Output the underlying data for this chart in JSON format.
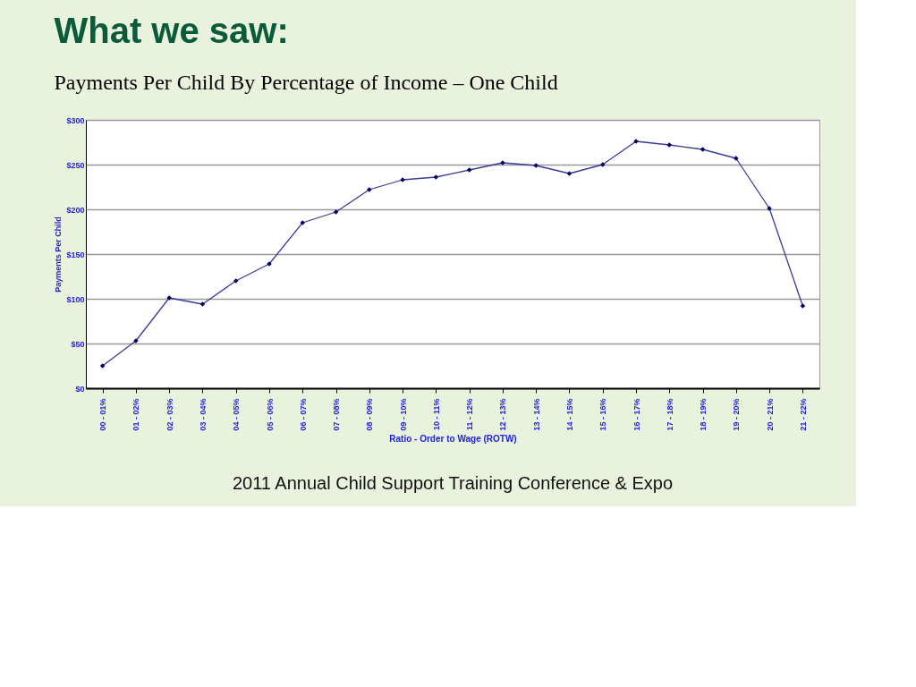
{
  "chart_data": {
    "type": "line",
    "title": "What we saw:",
    "subtitle": "Payments Per Child By Percentage of Income – One Child",
    "xlabel": "Ratio - Order to Wage (ROTW)",
    "ylabel": "Payments Per Child",
    "categories": [
      "00 - 01%",
      "01 - 02%",
      "02 - 03%",
      "03 - 04%",
      "04 - 05%",
      "05 - 06%",
      "06 - 07%",
      "07 - 08%",
      "08 - 09%",
      "09 - 10%",
      "10 - 11%",
      "11 - 12%",
      "12 - 13%",
      "13 - 14%",
      "14 - 15%",
      "15 - 16%",
      "16 - 17%",
      "17 - 18%",
      "18 - 19%",
      "19 - 20%",
      "20 - 21%",
      "21 - 22%"
    ],
    "series": [
      {
        "color": "#3a3a9a",
        "values": [
          25,
          53,
          101,
          94,
          120,
          139,
          185,
          197,
          222,
          233,
          236,
          244,
          252,
          249,
          240,
          250,
          276,
          272,
          267,
          257,
          201,
          92
        ]
      }
    ],
    "ylim": [
      0,
      300
    ],
    "yticks": [
      {
        "value": 0,
        "label": "$0"
      },
      {
        "value": 50,
        "label": "$50"
      },
      {
        "value": 100,
        "label": "$100"
      },
      {
        "value": 150,
        "label": "$150"
      },
      {
        "value": 200,
        "label": "$200"
      },
      {
        "value": 250,
        "label": "$250"
      },
      {
        "value": 300,
        "label": "$300"
      }
    ],
    "grid": "y",
    "marker": "diamond",
    "line_style": "solid",
    "legend": false,
    "annotations": [
      "2011 Annual Child Support Training Conference & Expo"
    ]
  }
}
